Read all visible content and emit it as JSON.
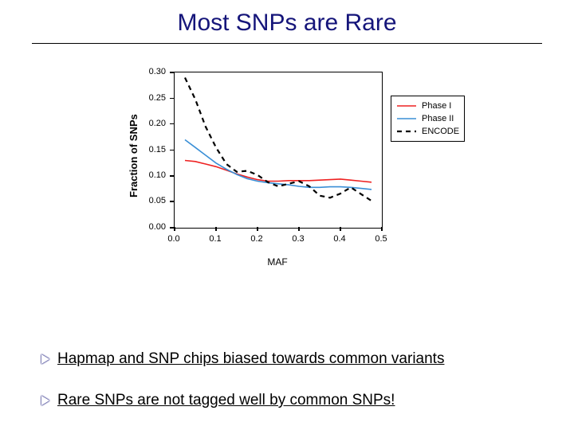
{
  "title": "Most SNPs are Rare",
  "title_color": "#15157a",
  "title_fontsize": 30,
  "background_color": "#ffffff",
  "chart": {
    "type": "line",
    "xlabel": "MAF",
    "ylabel": "Fraction of SNPs",
    "xlabel_fontsize": 12,
    "ylabel_fontsize": 13,
    "xlim": [
      0.0,
      0.5
    ],
    "ylim": [
      0.0,
      0.3
    ],
    "xticks": [
      0.0,
      0.1,
      0.2,
      0.3,
      0.4,
      0.5
    ],
    "yticks": [
      0.0,
      0.05,
      0.1,
      0.15,
      0.2,
      0.25,
      0.3
    ],
    "xtick_labels": [
      "0.0",
      "0.1",
      "0.2",
      "0.3",
      "0.4",
      "0.5"
    ],
    "ytick_labels": [
      "0.00",
      "0.05",
      "0.10",
      "0.15",
      "0.20",
      "0.25",
      "0.30"
    ],
    "tick_fontsize": 11,
    "box_color": "#000000",
    "plot_bg": "#ffffff",
    "series": [
      {
        "name": "Phase I",
        "color": "#ee2222",
        "dash": "",
        "width": 1.6,
        "x": [
          0.025,
          0.05,
          0.075,
          0.1,
          0.125,
          0.15,
          0.175,
          0.2,
          0.225,
          0.25,
          0.275,
          0.3,
          0.325,
          0.35,
          0.375,
          0.4,
          0.425,
          0.45,
          0.475
        ],
        "y": [
          0.13,
          0.128,
          0.123,
          0.118,
          0.111,
          0.104,
          0.098,
          0.093,
          0.09,
          0.09,
          0.091,
          0.091,
          0.091,
          0.092,
          0.093,
          0.094,
          0.092,
          0.09,
          0.088
        ]
      },
      {
        "name": "Phase II",
        "color": "#3a8fd6",
        "dash": "",
        "width": 1.6,
        "x": [
          0.025,
          0.05,
          0.075,
          0.1,
          0.125,
          0.15,
          0.175,
          0.2,
          0.225,
          0.25,
          0.275,
          0.3,
          0.325,
          0.35,
          0.375,
          0.4,
          0.425,
          0.45,
          0.475
        ],
        "y": [
          0.17,
          0.155,
          0.14,
          0.125,
          0.113,
          0.103,
          0.095,
          0.09,
          0.087,
          0.085,
          0.083,
          0.08,
          0.078,
          0.078,
          0.079,
          0.079,
          0.078,
          0.076,
          0.074
        ]
      },
      {
        "name": "ENCODE",
        "color": "#000000",
        "dash": "6,5",
        "width": 2.2,
        "x": [
          0.025,
          0.05,
          0.075,
          0.1,
          0.125,
          0.15,
          0.175,
          0.2,
          0.225,
          0.25,
          0.275,
          0.3,
          0.325,
          0.35,
          0.375,
          0.4,
          0.425,
          0.45,
          0.475
        ],
        "y": [
          0.29,
          0.248,
          0.195,
          0.155,
          0.123,
          0.108,
          0.11,
          0.102,
          0.088,
          0.08,
          0.085,
          0.09,
          0.08,
          0.062,
          0.058,
          0.066,
          0.078,
          0.065,
          0.052
        ]
      }
    ],
    "legend": {
      "items": [
        "Phase I",
        "Phase II",
        "ENCODE"
      ],
      "border_color": "#000000",
      "bg": "#ffffff",
      "fontsize": 11,
      "position": "right"
    }
  },
  "bullets": [
    "Hapmap and SNP chips biased towards common variants",
    "Rare SNPs are not tagged well by common SNPs!"
  ],
  "bullet_fontsize": 19,
  "bullet_marker_outline": "#15157a"
}
